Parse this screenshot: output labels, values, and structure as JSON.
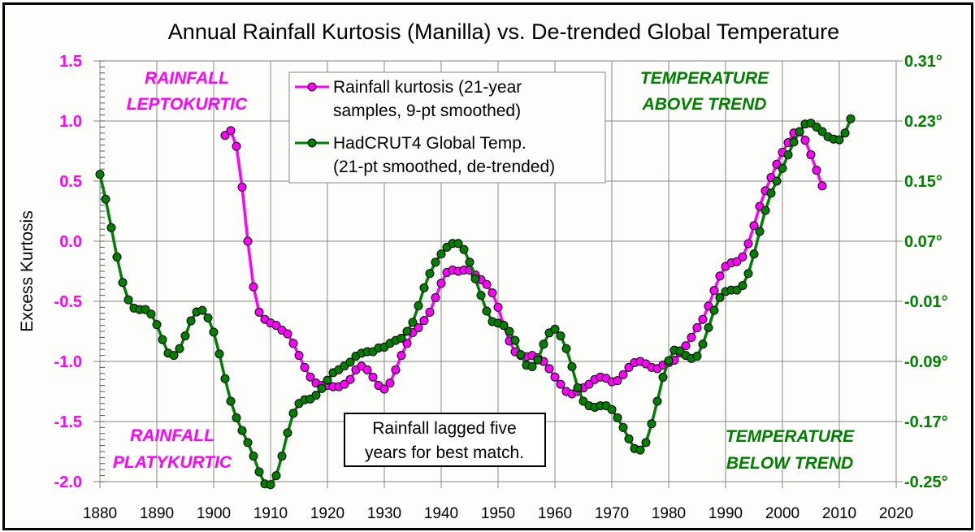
{
  "chart_data": {
    "type": "line",
    "title": "Annual Rainfall Kurtosis (Manilla) vs. De-trended Global Temperature",
    "ylabel": "Excess Kurtosis",
    "xlim": [
      1880,
      2020
    ],
    "ylim": [
      -2.0,
      1.5
    ],
    "y2lim": [
      -0.25,
      0.31
    ],
    "x_ticks": [
      "1880",
      "1890",
      "1900",
      "1910",
      "1920",
      "1930",
      "1940",
      "1950",
      "1960",
      "1970",
      "1980",
      "1990",
      "2000",
      "2010",
      "2020"
    ],
    "y_ticks": [
      "1.5",
      "1.0",
      "0.5",
      "0.0",
      "-0.5",
      "-1.0",
      "-1.5",
      "-2.0"
    ],
    "y2_ticks": [
      "0.31°",
      "0.23°",
      "0.15°",
      "0.07°",
      "-0.01°",
      "-0.09°",
      "-0.17°",
      "-0.25°"
    ],
    "grid": true,
    "legend_placement": "top-center",
    "annotations": {
      "top_left": [
        "RAINFALL",
        "LEPTOKURTIC"
      ],
      "bottom_left": [
        "RAINFALL",
        "PLATYKURTIC"
      ],
      "top_right": [
        "TEMPERATURE",
        "ABOVE TREND"
      ],
      "bottom_right": [
        "TEMPERATURE",
        "BELOW TREND"
      ],
      "note": [
        "Rainfall lagged five",
        "years for best match."
      ]
    },
    "series": [
      {
        "name": "Rainfall kurtosis (21-year samples, 9-pt smoothed)",
        "legend_lines": [
          "Rainfall kurtosis (21-year",
          "samples, 9-pt smoothed)"
        ],
        "axis": "left",
        "color": "#ff00ff",
        "x_start": 1902,
        "values": [
          0.88,
          0.92,
          0.79,
          0.45,
          0.0,
          -0.38,
          -0.59,
          -0.65,
          -0.68,
          -0.7,
          -0.74,
          -0.77,
          -0.85,
          -0.95,
          -1.05,
          -1.13,
          -1.18,
          -1.2,
          -1.2,
          -1.21,
          -1.21,
          -1.19,
          -1.15,
          -1.07,
          -1.04,
          -1.07,
          -1.13,
          -1.2,
          -1.23,
          -1.18,
          -1.07,
          -0.95,
          -0.85,
          -0.76,
          -0.72,
          -0.66,
          -0.59,
          -0.47,
          -0.35,
          -0.26,
          -0.24,
          -0.25,
          -0.24,
          -0.24,
          -0.28,
          -0.32,
          -0.36,
          -0.43,
          -0.55,
          -0.7,
          -0.83,
          -0.92,
          -0.95,
          -0.96,
          -0.95,
          -0.97,
          -1.0,
          -1.06,
          -1.13,
          -1.19,
          -1.25,
          -1.27,
          -1.25,
          -1.22,
          -1.19,
          -1.15,
          -1.13,
          -1.14,
          -1.17,
          -1.16,
          -1.11,
          -1.05,
          -1.01,
          -1.0,
          -1.02,
          -1.05,
          -1.06,
          -1.03,
          -1.01,
          -0.99,
          -0.93,
          -0.87,
          -0.8,
          -0.72,
          -0.65,
          -0.54,
          -0.41,
          -0.29,
          -0.21,
          -0.18,
          -0.17,
          -0.13,
          -0.02,
          0.13,
          0.29,
          0.42,
          0.53,
          0.64,
          0.74,
          0.82,
          0.9,
          0.91,
          0.84,
          0.72,
          0.59,
          0.46
        ]
      },
      {
        "name": "HadCRUT4 Global Temp. (21-pt smoothed, de-trended)",
        "legend_lines": [
          "HadCRUT4 Global Temp.",
          "(21-pt smoothed, de-trended)"
        ],
        "axis": "right",
        "color": "#008000",
        "x_start": 1880,
        "values": [
          0.159,
          0.126,
          0.088,
          0.049,
          0.015,
          -0.008,
          -0.019,
          -0.021,
          -0.021,
          -0.027,
          -0.041,
          -0.061,
          -0.079,
          -0.082,
          -0.073,
          -0.056,
          -0.036,
          -0.024,
          -0.022,
          -0.032,
          -0.051,
          -0.08,
          -0.113,
          -0.143,
          -0.165,
          -0.182,
          -0.198,
          -0.216,
          -0.237,
          -0.253,
          -0.254,
          -0.242,
          -0.216,
          -0.185,
          -0.159,
          -0.146,
          -0.141,
          -0.14,
          -0.135,
          -0.126,
          -0.115,
          -0.105,
          -0.101,
          -0.096,
          -0.091,
          -0.083,
          -0.079,
          -0.077,
          -0.077,
          -0.072,
          -0.071,
          -0.066,
          -0.062,
          -0.059,
          -0.05,
          -0.038,
          -0.016,
          0.008,
          0.027,
          0.042,
          0.053,
          0.062,
          0.067,
          0.067,
          0.059,
          0.042,
          0.02,
          -0.002,
          -0.023,
          -0.037,
          -0.039,
          -0.042,
          -0.05,
          -0.062,
          -0.081,
          -0.095,
          -0.097,
          -0.088,
          -0.067,
          -0.052,
          -0.047,
          -0.056,
          -0.073,
          -0.097,
          -0.125,
          -0.143,
          -0.149,
          -0.151,
          -0.149,
          -0.149,
          -0.154,
          -0.165,
          -0.178,
          -0.193,
          -0.206,
          -0.208,
          -0.198,
          -0.173,
          -0.143,
          -0.111,
          -0.089,
          -0.075,
          -0.076,
          -0.082,
          -0.086,
          -0.083,
          -0.067,
          -0.045,
          -0.022,
          -0.005,
          0.003,
          0.005,
          0.005,
          0.011,
          0.027,
          0.053,
          0.083,
          0.111,
          0.134,
          0.15,
          0.167,
          0.185,
          0.202,
          0.216,
          0.226,
          0.227,
          0.222,
          0.216,
          0.209,
          0.206,
          0.205,
          0.214,
          0.233
        ]
      }
    ]
  }
}
